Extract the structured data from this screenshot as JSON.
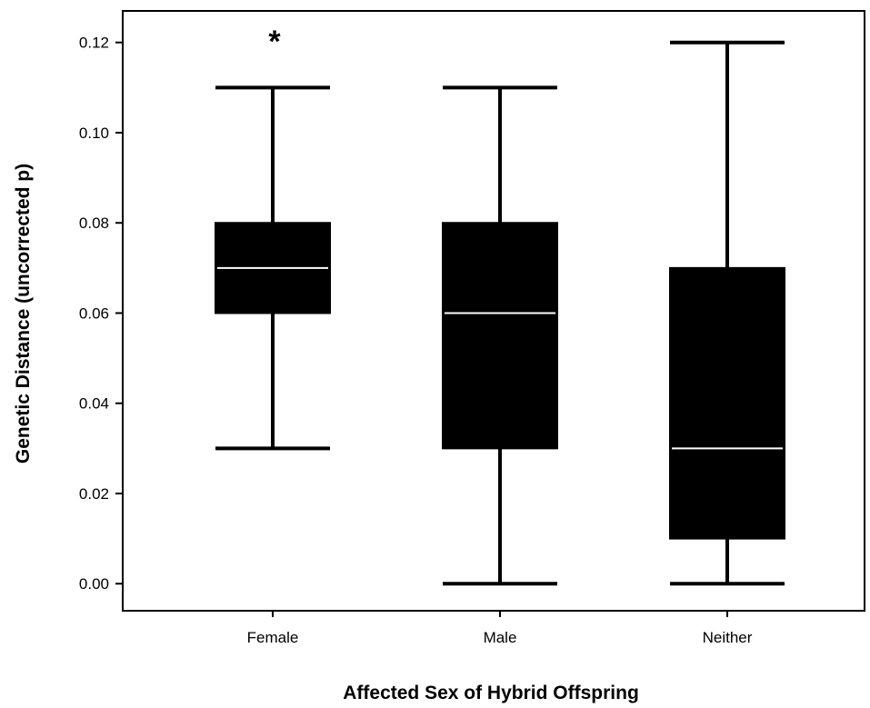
{
  "chart_data": {
    "type": "box",
    "xlabel": "Affected Sex of Hybrid Offspring",
    "ylabel": "Genetic Distance (uncorrected p)",
    "ylim": [
      -0.006,
      0.127
    ],
    "yticks": [
      0.0,
      0.02,
      0.04,
      0.06,
      0.08,
      0.1,
      0.12
    ],
    "ytick_labels": [
      "0.00",
      "0.02",
      "0.04",
      "0.06",
      "0.08",
      "0.10",
      "0.12"
    ],
    "grid": false,
    "categories": [
      "Female",
      "Male",
      "Neither"
    ],
    "boxes": [
      {
        "category": "Female",
        "whisker_low": 0.03,
        "q1": 0.06,
        "median": 0.07,
        "q3": 0.08,
        "whisker_high": 0.11
      },
      {
        "category": "Male",
        "whisker_low": 0.0,
        "q1": 0.03,
        "median": 0.06,
        "q3": 0.08,
        "whisker_high": 0.11
      },
      {
        "category": "Neither",
        "whisker_low": 0.0,
        "q1": 0.01,
        "median": 0.03,
        "q3": 0.07,
        "whisker_high": 0.12
      }
    ],
    "annotations": [
      {
        "text": "*",
        "category": "Female",
        "y": 0.122
      }
    ],
    "colors": {
      "box_fill": "#000000",
      "median_line": "#ffffff",
      "axis": "#000000"
    }
  }
}
